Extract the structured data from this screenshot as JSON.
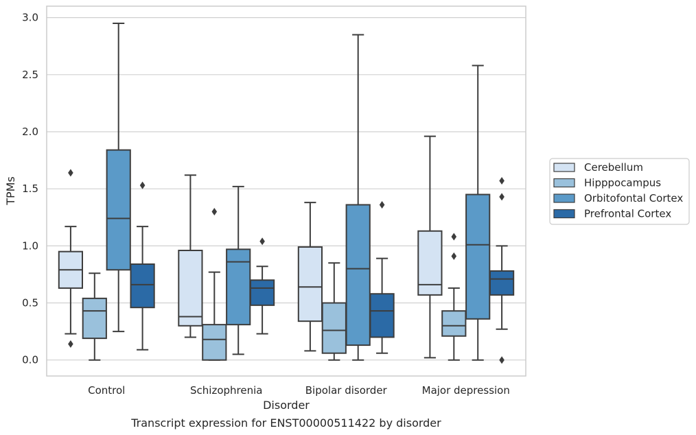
{
  "chart_data": {
    "type": "box",
    "xlabel": "Disorder",
    "ylabel": "TPMs",
    "caption": "Transcript expression for ENST00000511422 by disorder",
    "ylim": [
      -0.14,
      3.1
    ],
    "yticks": [
      "0.0",
      "0.5",
      "1.0",
      "1.5",
      "2.0",
      "2.5",
      "3.0"
    ],
    "grid": "horizontal",
    "legend_position": "right",
    "categories": [
      "Control",
      "Schizophrenia",
      "Bipolar disorder",
      "Major depression"
    ],
    "series": [
      {
        "name": "Cerebellum",
        "color": "#d4e3f3",
        "boxes": [
          {
            "min": 0.23,
            "q1": 0.63,
            "median": 0.79,
            "q3": 0.95,
            "max": 1.17,
            "outliers": [
              1.64,
              0.14
            ]
          },
          {
            "min": 0.2,
            "q1": 0.3,
            "median": 0.38,
            "q3": 0.96,
            "max": 1.62,
            "outliers": []
          },
          {
            "min": 0.08,
            "q1": 0.34,
            "median": 0.64,
            "q3": 0.99,
            "max": 1.38,
            "outliers": []
          },
          {
            "min": 0.02,
            "q1": 0.57,
            "median": 0.66,
            "q3": 1.13,
            "max": 1.96,
            "outliers": []
          }
        ]
      },
      {
        "name": "Hipppocampus",
        "color": "#9ac1dc",
        "boxes": [
          {
            "min": 0.0,
            "q1": 0.19,
            "median": 0.43,
            "q3": 0.54,
            "max": 0.76,
            "outliers": []
          },
          {
            "min": 0.0,
            "q1": 0.0,
            "median": 0.18,
            "q3": 0.31,
            "max": 0.77,
            "outliers": [
              1.3
            ]
          },
          {
            "min": 0.0,
            "q1": 0.06,
            "median": 0.26,
            "q3": 0.5,
            "max": 0.85,
            "outliers": []
          },
          {
            "min": 0.0,
            "q1": 0.21,
            "median": 0.3,
            "q3": 0.43,
            "max": 0.63,
            "outliers": [
              1.08,
              0.91
            ]
          }
        ]
      },
      {
        "name": "Orbitofontal Cortex",
        "color": "#5b9ac8",
        "boxes": [
          {
            "min": 0.25,
            "q1": 0.79,
            "median": 1.24,
            "q3": 1.84,
            "max": 2.95,
            "outliers": []
          },
          {
            "min": 0.05,
            "q1": 0.31,
            "median": 0.86,
            "q3": 0.97,
            "max": 1.52,
            "outliers": []
          },
          {
            "min": 0.0,
            "q1": 0.13,
            "median": 0.8,
            "q3": 1.36,
            "max": 2.85,
            "outliers": []
          },
          {
            "min": 0.0,
            "q1": 0.36,
            "median": 1.01,
            "q3": 1.45,
            "max": 2.58,
            "outliers": []
          }
        ]
      },
      {
        "name": "Prefrontal Cortex",
        "color": "#2b6aa6",
        "boxes": [
          {
            "min": 0.09,
            "q1": 0.46,
            "median": 0.66,
            "q3": 0.84,
            "max": 1.17,
            "outliers": [
              1.53
            ]
          },
          {
            "min": 0.23,
            "q1": 0.48,
            "median": 0.63,
            "q3": 0.7,
            "max": 0.82,
            "outliers": [
              1.04
            ]
          },
          {
            "min": 0.06,
            "q1": 0.2,
            "median": 0.43,
            "q3": 0.58,
            "max": 0.89,
            "outliers": [
              1.36
            ]
          },
          {
            "min": 0.27,
            "q1": 0.57,
            "median": 0.71,
            "q3": 0.78,
            "max": 1.0,
            "outliers": [
              1.57,
              1.43,
              0.0
            ]
          }
        ]
      }
    ]
  }
}
